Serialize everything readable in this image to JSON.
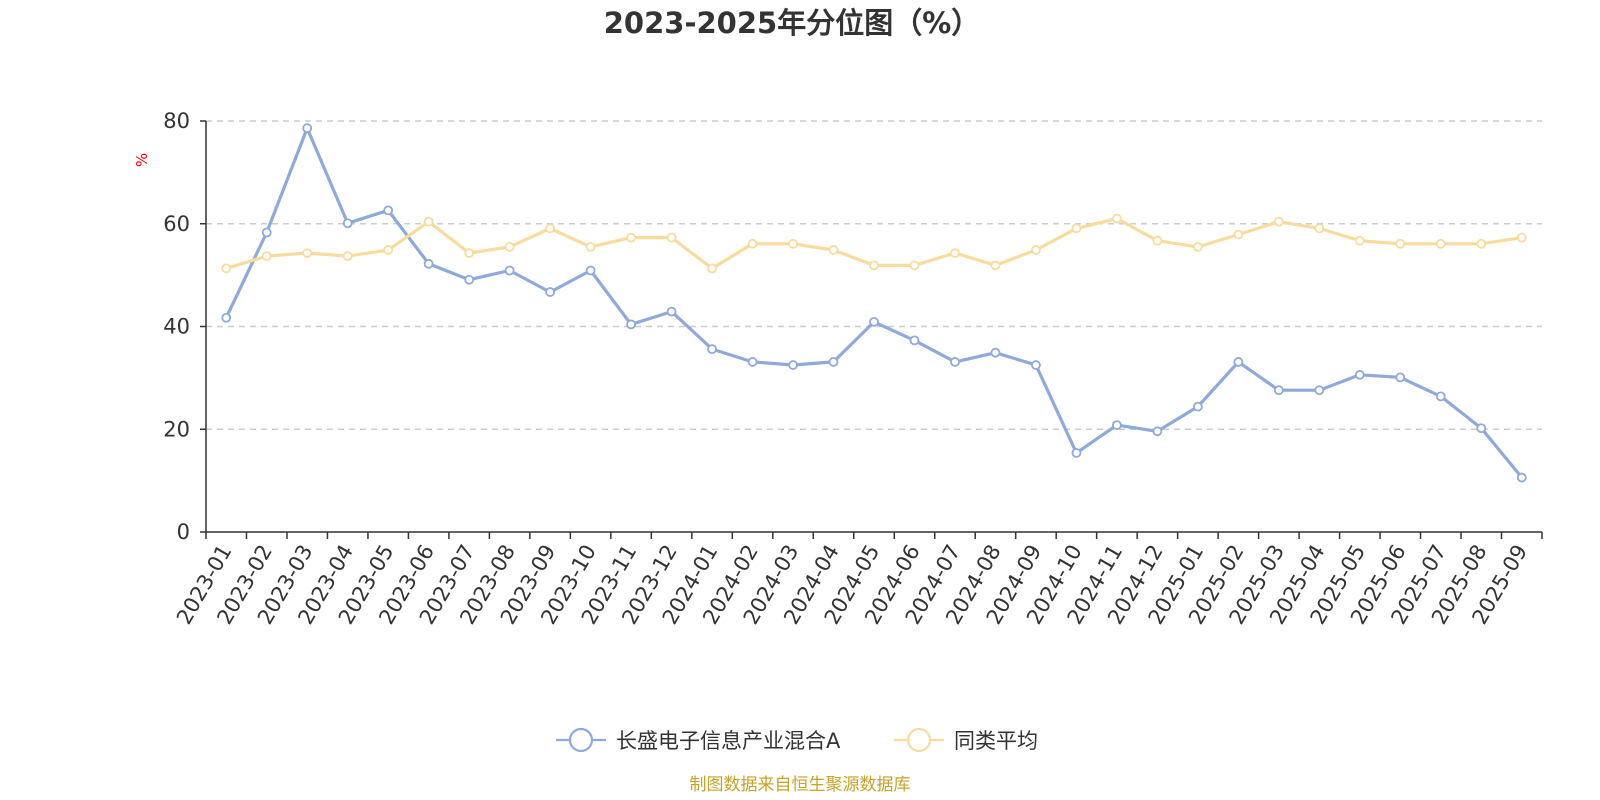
{
  "chart_data": {
    "type": "line",
    "title": "2023-2025年分位图（%）",
    "ylabel": "%",
    "ylim": [
      0,
      80
    ],
    "yticks": [
      0,
      20,
      40,
      60,
      80
    ],
    "grid": true,
    "legend_position": "bottom",
    "x": [
      "2023-01",
      "2023-02",
      "2023-03",
      "2023-04",
      "2023-05",
      "2023-06",
      "2023-07",
      "2023-08",
      "2023-09",
      "2023-10",
      "2023-11",
      "2023-12",
      "2024-01",
      "2024-02",
      "2024-03",
      "2024-04",
      "2024-05",
      "2024-06",
      "2024-07",
      "2024-08",
      "2024-09",
      "2024-10",
      "2024-11",
      "2024-12",
      "2025-01",
      "2025-02",
      "2025-03",
      "2025-04",
      "2025-05",
      "2025-06",
      "2025-07",
      "2025-08",
      "2025-09"
    ],
    "series": [
      {
        "name": "长盛电子信息产业混合A",
        "color": "#8eaadb",
        "values": [
          41.7,
          58.3,
          78.6,
          60.1,
          62.6,
          52.2,
          49.1,
          50.9,
          46.7,
          50.9,
          40.4,
          42.9,
          35.6,
          33.1,
          32.5,
          33.1,
          40.9,
          37.3,
          33.1,
          34.9,
          32.5,
          15.4,
          20.8,
          19.6,
          24.4,
          33.1,
          27.6,
          27.6,
          30.6,
          30.1,
          26.4,
          20.2,
          10.6
        ]
      },
      {
        "name": "同类平均",
        "color": "#fadb9e",
        "values": [
          51.3,
          53.7,
          54.3,
          53.7,
          54.9,
          60.4,
          54.3,
          55.5,
          59.1,
          55.5,
          57.3,
          57.3,
          51.3,
          56.1,
          56.1,
          54.9,
          51.9,
          51.9,
          54.3,
          51.9,
          54.9,
          59.1,
          61.0,
          56.7,
          55.5,
          57.9,
          60.4,
          59.1,
          56.7,
          56.1,
          56.1,
          56.1,
          57.3
        ]
      }
    ],
    "source": "制图数据来自恒生聚源数据库",
    "colors": {
      "axis": "#333333",
      "grid": "#cccccc",
      "ylabel": "#ff0000",
      "source": "#c9a227"
    }
  }
}
